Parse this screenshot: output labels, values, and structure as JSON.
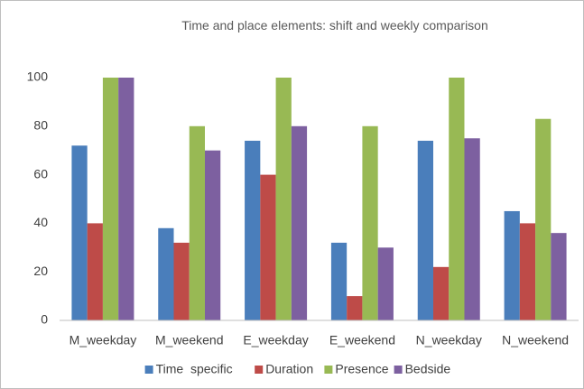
{
  "chart_data": {
    "type": "bar",
    "title": "Time and place elements: shift and weekly comparison",
    "categories": [
      "M_weekday",
      "M_weekend",
      "E_weekday",
      "E_weekend",
      "N_weekday",
      "N_weekend"
    ],
    "series": [
      {
        "name": "Time  specific",
        "color": "#4a7ebb",
        "values": [
          72,
          38,
          74,
          32,
          74,
          45
        ]
      },
      {
        "name": "Duration",
        "color": "#be4b48",
        "values": [
          40,
          32,
          60,
          10,
          22,
          40
        ]
      },
      {
        "name": "Presence",
        "color": "#98b954",
        "values": [
          100,
          80,
          100,
          80,
          100,
          83
        ]
      },
      {
        "name": "Bedside",
        "color": "#7d60a0",
        "values": [
          100,
          70,
          80,
          30,
          75,
          36
        ]
      }
    ],
    "ylim": [
      0,
      100
    ],
    "yticks": [
      0,
      20,
      40,
      60,
      80,
      100
    ],
    "grid": false,
    "legend": "bottom"
  }
}
